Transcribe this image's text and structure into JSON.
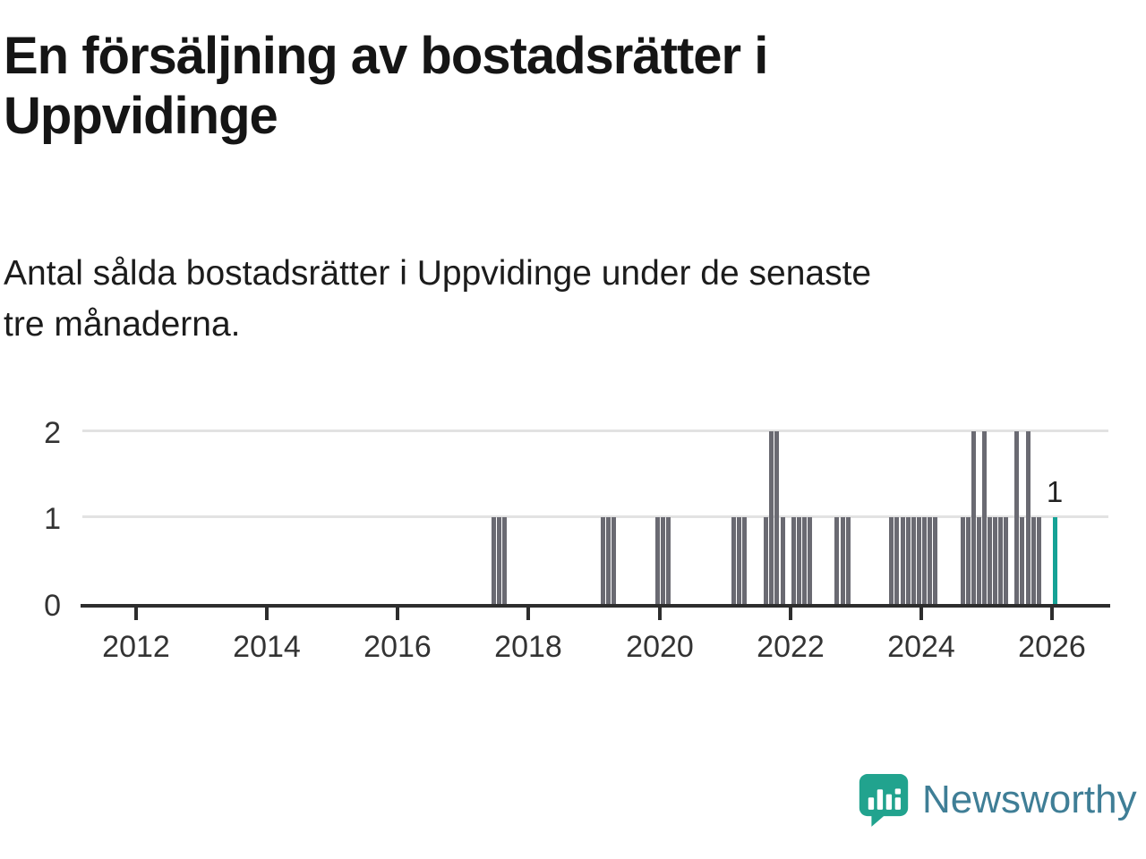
{
  "page": {
    "title": "En försäljning av bostadsrätter i\nUppvidinge",
    "subtitle": "Antal sålda bostadsrätter i Uppvidinge under de senaste\ntre månaderna."
  },
  "branding": {
    "wordmark": "Newsworthy",
    "icon": "newsworthy-chart-badge-icon",
    "icon_color": "#21a38e",
    "wordmark_color": "#3f7e96"
  },
  "chart_data": {
    "type": "bar",
    "title": "En försäljning av bostadsrätter i Uppvidinge",
    "subtitle": "Antal sålda bostadsrätter i Uppvidinge under de senaste tre månaderna.",
    "xlabel": "",
    "ylabel": "",
    "ylim": [
      0,
      2
    ],
    "yticks": [
      0,
      1,
      2
    ],
    "xticks": [
      2012,
      2014,
      2016,
      2018,
      2020,
      2022,
      2024,
      2026
    ],
    "grid": "horizontal",
    "legend": "none",
    "bar_color": "#6a6a72",
    "highlight_color": "#16a296",
    "axis_color": "#2d2d2d",
    "grid_color": "#e2e2e2",
    "label_color": "#333333",
    "annotation": {
      "text": "1",
      "month": "2026-01"
    },
    "points": [
      {
        "month": "2017-06",
        "value": 1
      },
      {
        "month": "2017-07",
        "value": 1
      },
      {
        "month": "2017-08",
        "value": 1
      },
      {
        "month": "2019-02",
        "value": 1
      },
      {
        "month": "2019-03",
        "value": 1
      },
      {
        "month": "2019-04",
        "value": 1
      },
      {
        "month": "2019-12",
        "value": 1
      },
      {
        "month": "2020-01",
        "value": 1
      },
      {
        "month": "2020-02",
        "value": 1
      },
      {
        "month": "2021-02",
        "value": 1
      },
      {
        "month": "2021-03",
        "value": 1
      },
      {
        "month": "2021-04",
        "value": 1
      },
      {
        "month": "2021-08",
        "value": 1
      },
      {
        "month": "2021-09",
        "value": 2
      },
      {
        "month": "2021-10",
        "value": 2
      },
      {
        "month": "2021-11",
        "value": 1
      },
      {
        "month": "2022-01",
        "value": 1
      },
      {
        "month": "2022-02",
        "value": 1
      },
      {
        "month": "2022-03",
        "value": 1
      },
      {
        "month": "2022-04",
        "value": 1
      },
      {
        "month": "2022-09",
        "value": 1
      },
      {
        "month": "2022-10",
        "value": 1
      },
      {
        "month": "2022-11",
        "value": 1
      },
      {
        "month": "2023-07",
        "value": 1
      },
      {
        "month": "2023-08",
        "value": 1
      },
      {
        "month": "2023-09",
        "value": 1
      },
      {
        "month": "2023-10",
        "value": 1
      },
      {
        "month": "2023-11",
        "value": 1
      },
      {
        "month": "2023-12",
        "value": 1
      },
      {
        "month": "2024-01",
        "value": 1
      },
      {
        "month": "2024-02",
        "value": 1
      },
      {
        "month": "2024-03",
        "value": 1
      },
      {
        "month": "2024-08",
        "value": 1
      },
      {
        "month": "2024-09",
        "value": 1
      },
      {
        "month": "2024-10",
        "value": 2
      },
      {
        "month": "2024-11",
        "value": 1
      },
      {
        "month": "2024-12",
        "value": 2
      },
      {
        "month": "2025-01",
        "value": 1
      },
      {
        "month": "2025-02",
        "value": 1
      },
      {
        "month": "2025-03",
        "value": 1
      },
      {
        "month": "2025-04",
        "value": 1
      },
      {
        "month": "2025-06",
        "value": 2
      },
      {
        "month": "2025-07",
        "value": 1
      },
      {
        "month": "2025-08",
        "value": 2
      },
      {
        "month": "2025-09",
        "value": 1
      },
      {
        "month": "2025-10",
        "value": 1
      },
      {
        "month": "2026-01",
        "value": 1,
        "highlight": true,
        "label": "1"
      }
    ]
  }
}
